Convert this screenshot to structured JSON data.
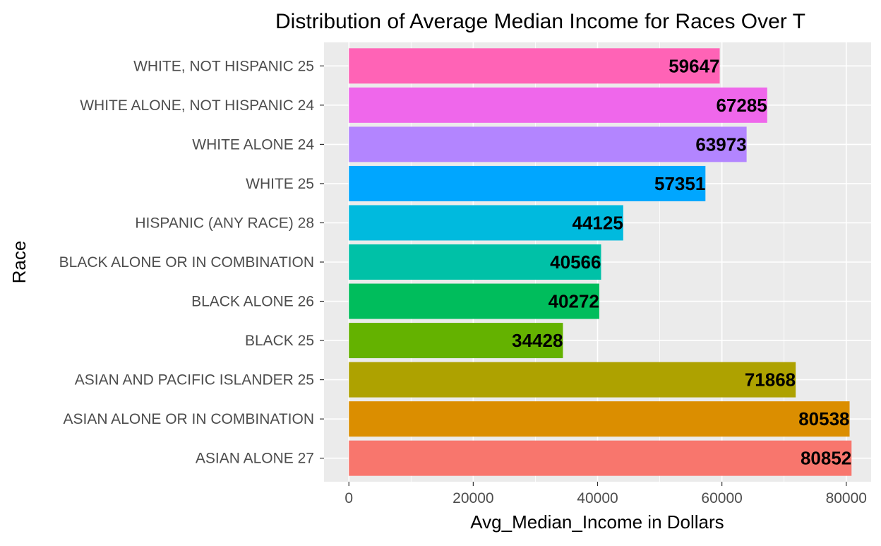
{
  "chart_data": {
    "type": "bar",
    "orientation": "horizontal",
    "title": "Distribution of Average Median Income for Races Over T",
    "xlabel": "Avg_Median_Income in Dollars",
    "ylabel": "Race",
    "xlim": [
      -4000,
      84000
    ],
    "x_ticks": [
      0,
      20000,
      40000,
      60000,
      80000
    ],
    "x_tick_labels": [
      "0",
      "20000",
      "40000",
      "60000",
      "80000"
    ],
    "grid": true,
    "legend": "none",
    "categories": [
      "ASIAN ALONE 27",
      "ASIAN ALONE OR IN COMBINATION",
      "ASIAN AND PACIFIC ISLANDER 25",
      "BLACK 25",
      "BLACK ALONE 26",
      "BLACK ALONE OR IN COMBINATION",
      "HISPANIC (ANY RACE) 28",
      "WHITE 25",
      "WHITE ALONE 24",
      "WHITE ALONE, NOT HISPANIC 24",
      "WHITE, NOT HISPANIC 25"
    ],
    "values": [
      80852,
      80538,
      71868,
      34428,
      40272,
      40566,
      44125,
      57351,
      63973,
      67285,
      59647
    ],
    "data_labels": [
      "80852",
      "80538",
      "71868",
      "34428",
      "40272",
      "40566",
      "44125",
      "57351",
      "63973",
      "67285",
      "59647"
    ],
    "colors": [
      "#F8766D",
      "#DB8E00",
      "#AEA200",
      "#64B200",
      "#00BD5C",
      "#00C1A7",
      "#00BADE",
      "#00A6FF",
      "#B385FF",
      "#EF67EB",
      "#FF63B6"
    ]
  }
}
